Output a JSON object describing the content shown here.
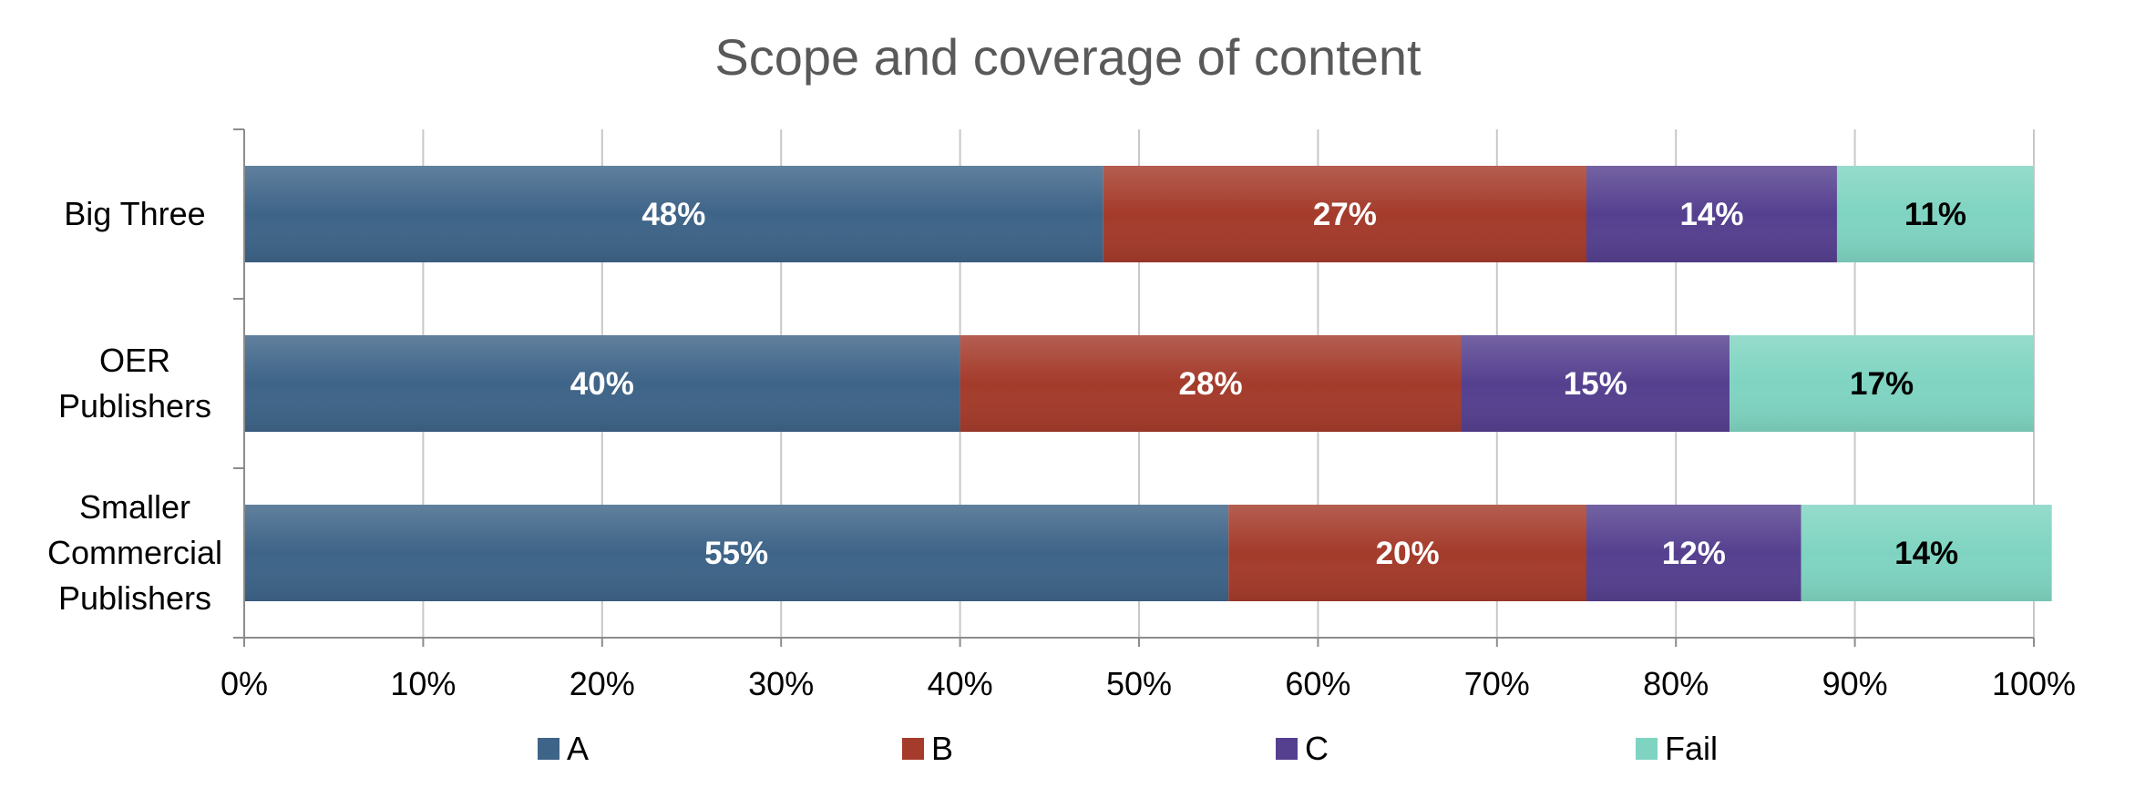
{
  "chart_data": {
    "type": "bar",
    "orientation": "horizontal",
    "stacked": "percent",
    "title": "Scope and coverage of content",
    "categories": [
      [
        "Big Three"
      ],
      [
        "OER",
        "Publishers"
      ],
      [
        "Smaller",
        "Commercial",
        "Publishers"
      ]
    ],
    "series": [
      {
        "name": "A",
        "values": [
          48,
          40,
          55
        ],
        "labels": [
          "48%",
          "40%",
          "55%"
        ],
        "color": "#3e6488",
        "label_color": "#ffffff"
      },
      {
        "name": "B",
        "values": [
          27,
          28,
          20
        ],
        "labels": [
          "27%",
          "28%",
          "20%"
        ],
        "color": "#a43b2b",
        "label_color": "#ffffff"
      },
      {
        "name": "C",
        "values": [
          14,
          15,
          12
        ],
        "labels": [
          "14%",
          "15%",
          "12%"
        ],
        "color": "#55408f",
        "label_color": "#ffffff"
      },
      {
        "name": "Fail",
        "values": [
          11,
          17,
          14
        ],
        "labels": [
          "11%",
          "17%",
          "14%"
        ],
        "color": "#7fd4c1",
        "label_color": "#000000"
      }
    ],
    "x_ticks": [
      "0%",
      "10%",
      "20%",
      "30%",
      "40%",
      "50%",
      "60%",
      "70%",
      "80%",
      "90%",
      "100%"
    ],
    "xlim": [
      0,
      100
    ],
    "grid": "vertical",
    "legend_position": "bottom"
  }
}
